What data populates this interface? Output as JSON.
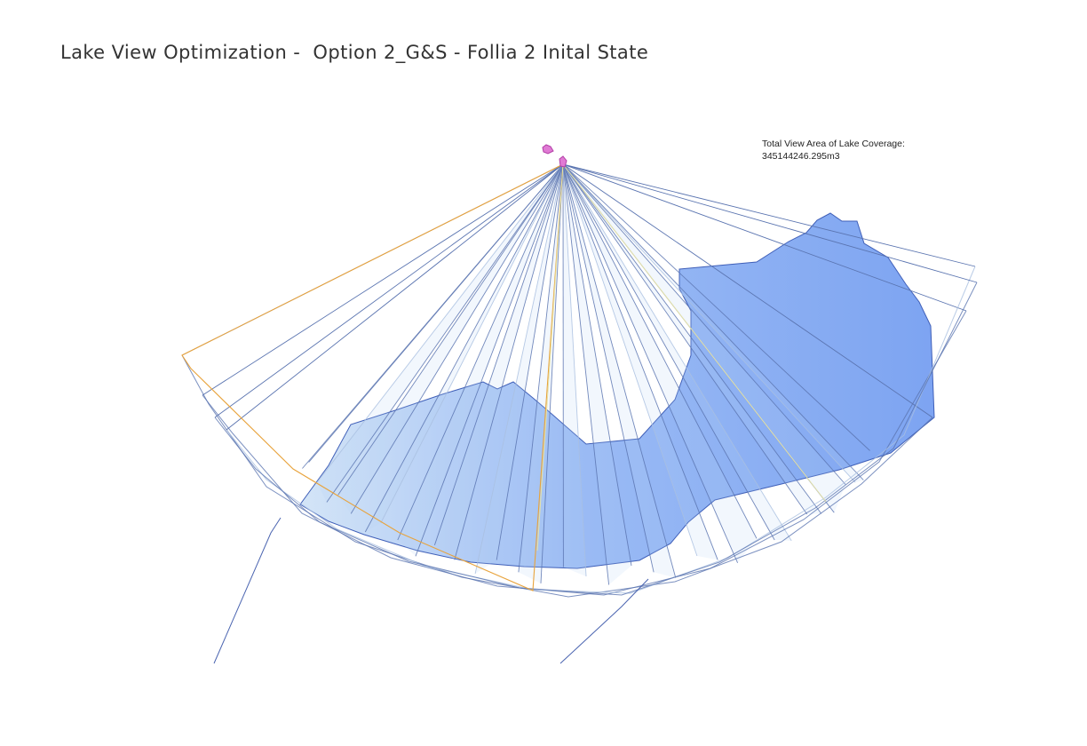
{
  "header": {
    "title": "Lake View Optimization -  Option 2_G&S - Follia 2 Inital State"
  },
  "annotation": {
    "label": "Total View Area of Lake Coverage:",
    "value": "345144246.295m3"
  },
  "colors": {
    "view_cone_outline": "#5a74b0",
    "view_cone_light_outline": "#a9bfe0",
    "highlight_cone_outline": "#e8a33c",
    "faint_cone_outline": "#e6e3a8",
    "lake_fill": "#6f9af0",
    "lake_light_fill": "#b9d2f3",
    "lake_outline": "#3f5fb8",
    "viewpoint_marker": "#d44fc4"
  },
  "icons": {
    "viewpoint": "viewpoint-marker-icon"
  }
}
